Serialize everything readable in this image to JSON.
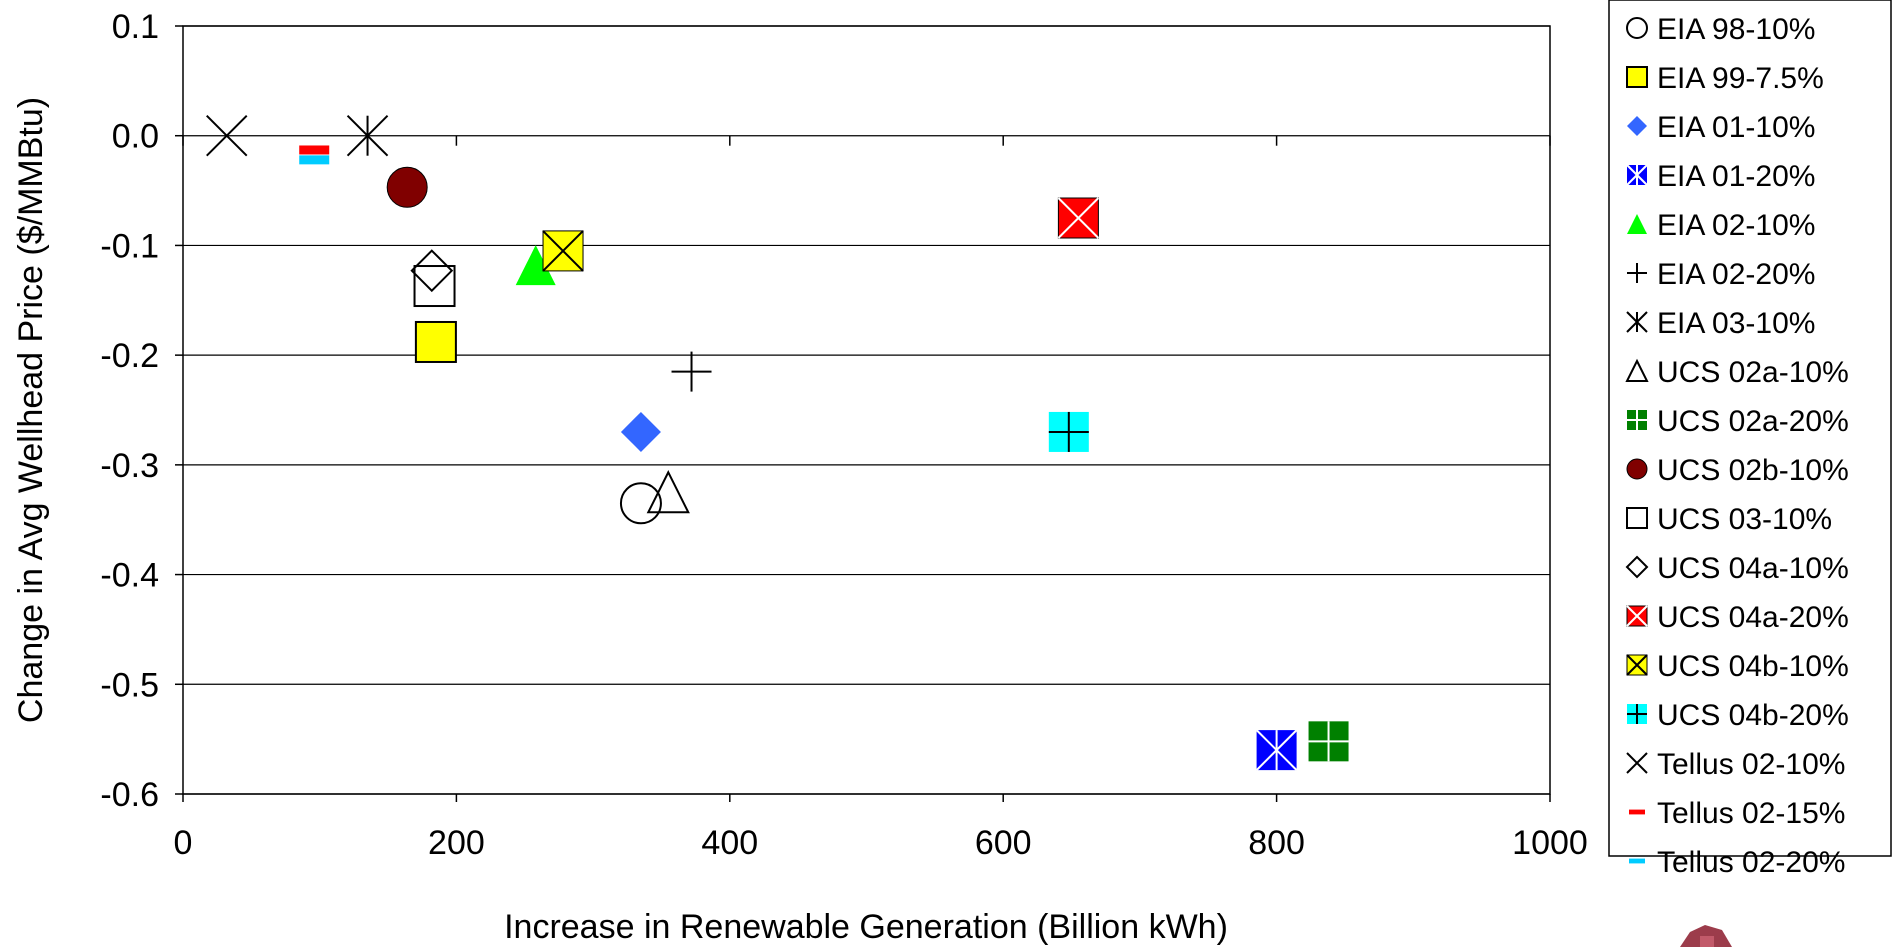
{
  "chart_data": {
    "type": "scatter",
    "title": "",
    "xlabel": "Increase in Renewable Generation (Billion kWh)",
    "ylabel": "Change in Avg Wellhead Price ($/MMBtu)",
    "xlim": [
      0,
      1000
    ],
    "ylim": [
      -0.6,
      0.1
    ],
    "x_ticks": [
      "0",
      "200",
      "400",
      "600",
      "800",
      "1000"
    ],
    "y_ticks": [
      "0.1",
      "0.0",
      "-0.1",
      "-0.2",
      "-0.3",
      "-0.4",
      "-0.5",
      "-0.6"
    ],
    "grid": "horizontal",
    "legend_position": "right",
    "series": [
      {
        "name": "EIA 98-10%",
        "marker": "open-circle",
        "color": "#000000",
        "x": 335,
        "y": -0.335
      },
      {
        "name": "EIA 99-7.5%",
        "marker": "square",
        "color": "#FFFF00",
        "x": 185,
        "y": -0.188
      },
      {
        "name": "EIA 01-10%",
        "marker": "diamond",
        "color": "#3366FF",
        "x": 335,
        "y": -0.27
      },
      {
        "name": "EIA 01-20%",
        "marker": "square-star",
        "color": "#0000FF",
        "x": 800,
        "y": -0.56
      },
      {
        "name": "EIA 02-10%",
        "marker": "triangle",
        "color": "#00FF00",
        "x": 258,
        "y": -0.118
      },
      {
        "name": "EIA 02-20%",
        "marker": "plus",
        "color": "#000000",
        "x": 372,
        "y": -0.215
      },
      {
        "name": "EIA 03-10%",
        "marker": "asterisk",
        "color": "#000000",
        "x": 135,
        "y": 0.0
      },
      {
        "name": "UCS 02a-10%",
        "marker": "open-triangle",
        "color": "#000000",
        "x": 355,
        "y": -0.325
      },
      {
        "name": "UCS 02a-20%",
        "marker": "square-grid",
        "color": "#008000",
        "x": 838,
        "y": -0.552
      },
      {
        "name": "UCS 02b-10%",
        "marker": "circle",
        "color": "#800000",
        "x": 164,
        "y": -0.047
      },
      {
        "name": "UCS 03-10%",
        "marker": "open-square",
        "color": "#000000",
        "x": 184,
        "y": -0.137
      },
      {
        "name": "UCS 04a-10%",
        "marker": "open-diamond",
        "color": "#000000",
        "x": 182,
        "y": -0.123
      },
      {
        "name": "UCS 04a-20%",
        "marker": "square-x",
        "color": "#FF0000",
        "x": 655,
        "y": -0.075
      },
      {
        "name": "UCS 04b-10%",
        "marker": "square-x",
        "color": "#FFFF00",
        "x": 278,
        "y": -0.105
      },
      {
        "name": "UCS 04b-20%",
        "marker": "square-plus",
        "color": "#00FFFF",
        "x": 648,
        "y": -0.27
      },
      {
        "name": "Tellus 02-10%",
        "marker": "x",
        "color": "#000000",
        "x": 32,
        "y": 0.0
      },
      {
        "name": "Tellus 02-15%",
        "marker": "dash",
        "color": "#FF0000",
        "x": 96,
        "y": -0.013
      },
      {
        "name": "Tellus 02-20%",
        "marker": "dash",
        "color": "#00CCFF",
        "x": 96,
        "y": -0.022
      }
    ]
  }
}
